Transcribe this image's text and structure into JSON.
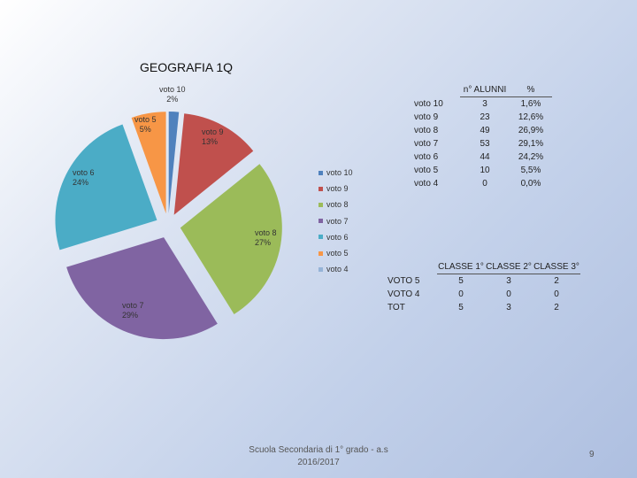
{
  "chart_data": {
    "type": "pie",
    "title": "GEOGRAFIA 1Q",
    "categories": [
      "voto 10",
      "voto 9",
      "voto 8",
      "voto 7",
      "voto 6",
      "voto 5",
      "voto 4"
    ],
    "values": [
      1.6,
      12.6,
      26.9,
      29.1,
      24.2,
      5.5,
      0.0
    ],
    "slice_labels": [
      {
        "name": "voto 10",
        "pct": "2%"
      },
      {
        "name": "voto 9",
        "pct": "13%"
      },
      {
        "name": "voto 8",
        "pct": "27%"
      },
      {
        "name": "voto 7",
        "pct": "29%"
      },
      {
        "name": "voto 6",
        "pct": "24%"
      },
      {
        "name": "voto 5",
        "pct": "5%"
      }
    ],
    "colors": [
      "#4f81bd",
      "#c0504d",
      "#9bbb59",
      "#8064a2",
      "#4bacc6",
      "#f79646",
      "#95b3d7"
    ],
    "legend": {
      "placement": "right",
      "items": [
        "voto 10",
        "voto 9",
        "voto 8",
        "voto 7",
        "voto 6",
        "voto 5",
        "voto 4"
      ]
    }
  },
  "table1": {
    "headers": [
      "",
      "n° ALUNNI",
      "%"
    ],
    "rows": [
      [
        "voto 10",
        "3",
        "1,6%"
      ],
      [
        "voto 9",
        "23",
        "12,6%"
      ],
      [
        "voto 8",
        "49",
        "26,9%"
      ],
      [
        "voto 7",
        "53",
        "29,1%"
      ],
      [
        "voto 6",
        "44",
        "24,2%"
      ],
      [
        "voto 5",
        "10",
        "5,5%"
      ],
      [
        "voto 4",
        "0",
        "0,0%"
      ]
    ]
  },
  "table2": {
    "headers": [
      "",
      "CLASSE 1°",
      "CLASSE 2°",
      "CLASSE 3°"
    ],
    "rows": [
      [
        "VOTO 5",
        "5",
        "3",
        "2"
      ],
      [
        "VOTO 4",
        "0",
        "0",
        "0"
      ],
      [
        "TOT",
        "5",
        "3",
        "2"
      ]
    ]
  },
  "footer": {
    "line1": "Scuola Secondaria di 1° grado - a.s",
    "line2": "2016/2017"
  },
  "page_number": "9"
}
